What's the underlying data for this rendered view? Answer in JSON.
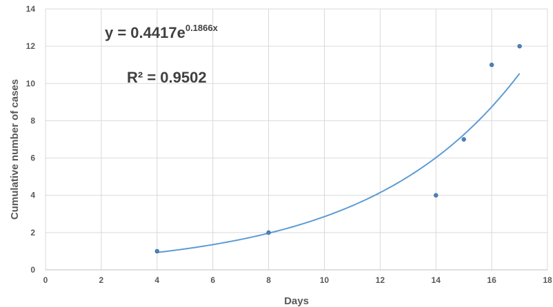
{
  "chart_data": {
    "type": "scatter",
    "xlabel": "Days",
    "ylabel": "Cumulative number of cases",
    "xlim": [
      0,
      18
    ],
    "ylim": [
      0,
      14
    ],
    "xticks": [
      0,
      2,
      4,
      6,
      8,
      10,
      12,
      14,
      16,
      18
    ],
    "yticks": [
      0,
      2,
      4,
      6,
      8,
      10,
      12,
      14
    ],
    "grid": true,
    "series": [
      {
        "x": [
          4,
          8,
          14,
          15,
          16,
          17
        ],
        "y": [
          1,
          2,
          4,
          7,
          11,
          12
        ],
        "color": "#4f81bd"
      }
    ],
    "trendline": {
      "type": "exponential",
      "a": 0.4417,
      "b": 0.1866,
      "x_range": [
        4,
        17
      ],
      "color": "#5b9bd5",
      "equation_base": "y = 0.4417e",
      "equation_exponent": "0.1866x",
      "r_squared_text": "R² = 0.9502"
    }
  }
}
